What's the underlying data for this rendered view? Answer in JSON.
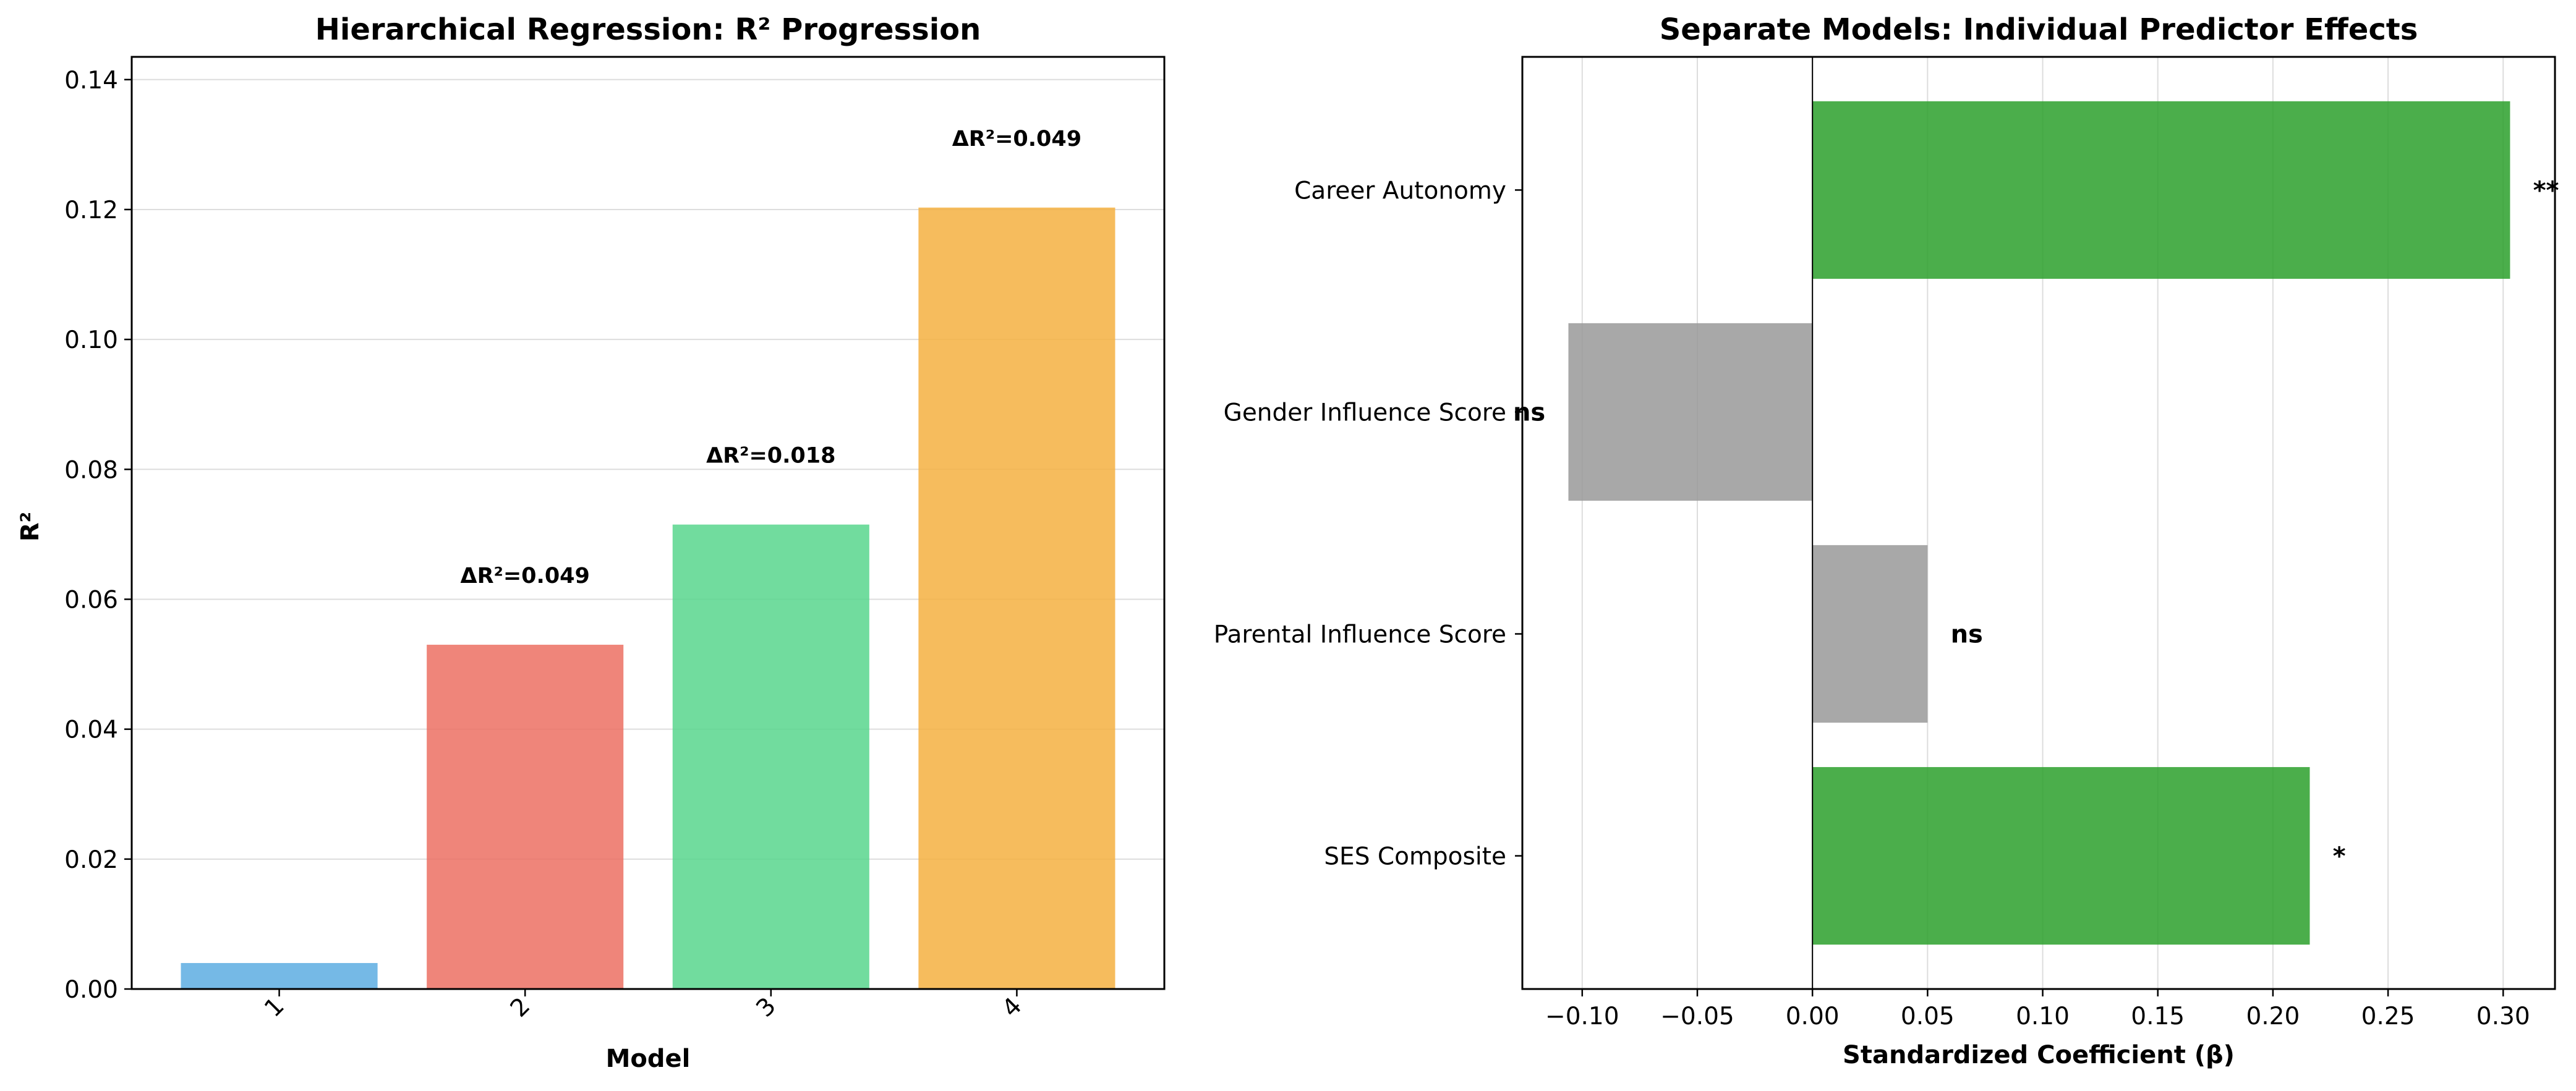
{
  "chart_data": [
    {
      "type": "bar",
      "title": "Hierarchical Regression: R² Progression",
      "xlabel": "Model",
      "ylabel": "R²",
      "categories": [
        "1",
        "2",
        "3",
        "4"
      ],
      "values": [
        0.004,
        0.053,
        0.0715,
        0.1203
      ],
      "colors": [
        "#5DADE2",
        "#EC7063",
        "#58D68D",
        "#F5B041"
      ],
      "annotations": [
        "",
        "ΔR²=0.049",
        "ΔR²=0.018",
        "ΔR²=0.049"
      ],
      "ylim": [
        0,
        0.1435
      ],
      "yticks": [
        0.0,
        0.02,
        0.04,
        0.06,
        0.08,
        0.1,
        0.12,
        0.14
      ],
      "ytick_labels": [
        "0.00",
        "0.02",
        "0.04",
        "0.06",
        "0.08",
        "0.10",
        "0.12",
        "0.14"
      ],
      "grid": "y"
    },
    {
      "type": "bar",
      "orientation": "horizontal",
      "title": "Separate Models: Individual Predictor Effects",
      "xlabel": "Standardized Coefficient (β)",
      "categories": [
        "Career Autonomy",
        "Gender Influence Score",
        "Parental Influence Score",
        "SES Composite"
      ],
      "values": [
        0.303,
        -0.106,
        0.05,
        0.216
      ],
      "significance": [
        "**",
        "ns",
        "ns",
        "*"
      ],
      "colors": [
        "#2CA02C",
        "#999999",
        "#999999",
        "#2CA02C"
      ],
      "xlim": [
        -0.126,
        0.3225
      ],
      "xticks": [
        -0.1,
        -0.05,
        0.0,
        0.05,
        0.1,
        0.15,
        0.2,
        0.25,
        0.3
      ],
      "xtick_labels": [
        "−0.10",
        "−0.05",
        "0.00",
        "0.05",
        "0.10",
        "0.15",
        "0.20",
        "0.25",
        "0.30"
      ],
      "grid": "x"
    }
  ]
}
